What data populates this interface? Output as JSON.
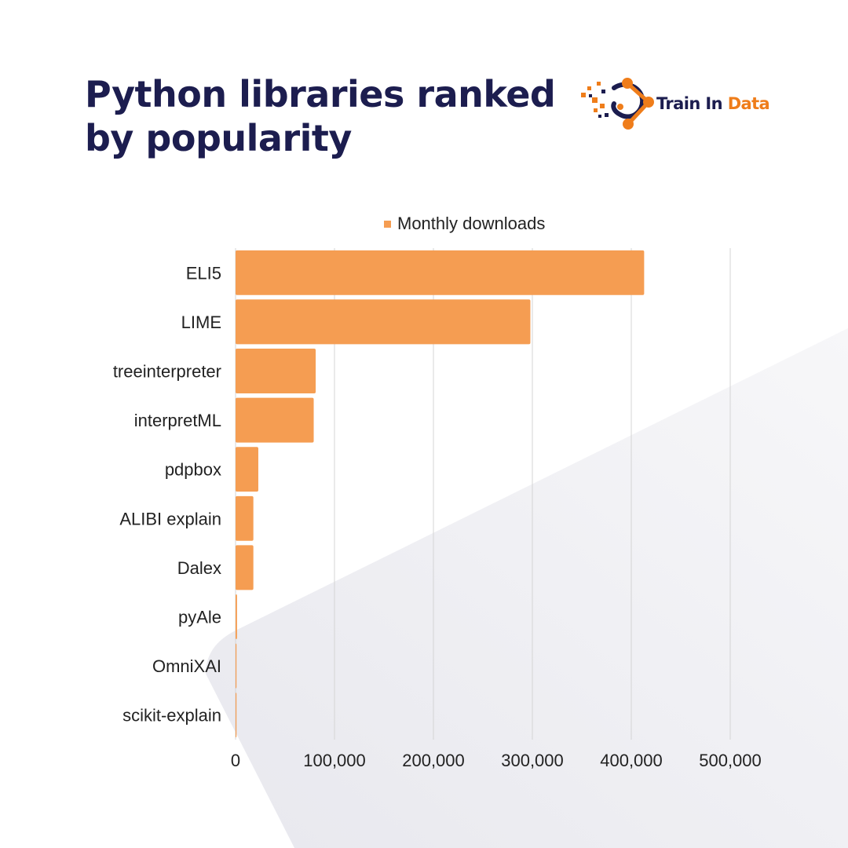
{
  "title_lines": [
    "Python libraries ranked",
    "by popularity"
  ],
  "brand": {
    "name_part1": "Train In",
    "name_part2": "Data",
    "color_navy": "#1c1d4f",
    "color_orange": "#ef7d1a"
  },
  "colors": {
    "bar": "#f59d52",
    "grid": "#d4d4d4",
    "text": "#222222",
    "background_shape": "#ebebf0"
  },
  "chart_data": {
    "type": "bar",
    "orientation": "horizontal",
    "categories": [
      "ELI5",
      "LIME",
      "treeinterpreter",
      "interpretML",
      "pdpbox",
      "ALIBI explain",
      "Dalex",
      "pyAle",
      "OmniXAI",
      "scikit-explain"
    ],
    "series": [
      {
        "name": "Monthly downloads",
        "values": [
          413000,
          298000,
          81000,
          79000,
          23000,
          18000,
          18000,
          1500,
          900,
          100
        ]
      }
    ],
    "xlim": [
      0,
      500000
    ],
    "xticks": [
      0,
      100000,
      200000,
      300000,
      400000,
      500000
    ],
    "xtick_labels": [
      "0",
      "100,000",
      "200,000",
      "300,000",
      "400,000",
      "500,000"
    ],
    "grid": "vertical",
    "legend_position": "top"
  }
}
